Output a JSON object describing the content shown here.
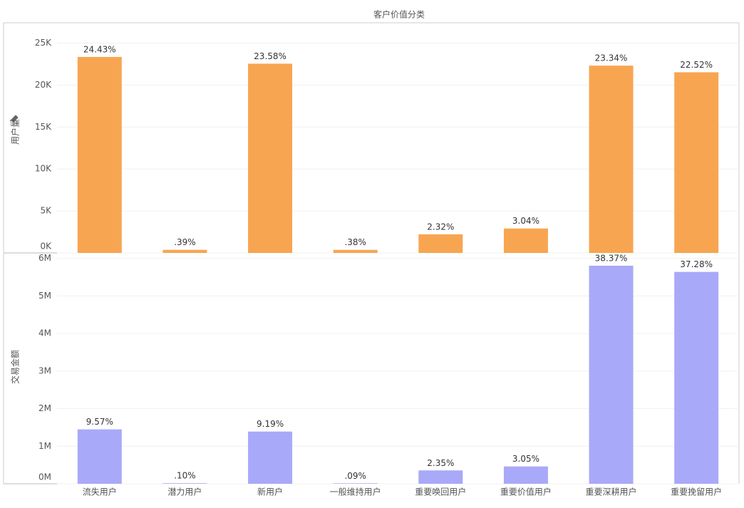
{
  "chart_data": [
    {
      "type": "bar",
      "title": "客户价值分类",
      "y_label": "用户量",
      "color": "#f8a552",
      "values": [
        23360,
        370,
        22550,
        365,
        2220,
        2910,
        22320,
        21530
      ],
      "labels": [
        "24.43%",
        ".39%",
        "23.58%",
        ".38%",
        "2.32%",
        "3.04%",
        "23.34%",
        "22.52%"
      ],
      "ylim": [
        0,
        27000
      ],
      "yticks": [
        {
          "value": 0,
          "label": "0K"
        },
        {
          "value": 5000,
          "label": "5K"
        },
        {
          "value": 10000,
          "label": "10K"
        },
        {
          "value": 15000,
          "label": "15K"
        },
        {
          "value": 20000,
          "label": "20K"
        },
        {
          "value": 25000,
          "label": "25K"
        }
      ],
      "grid": true
    },
    {
      "type": "bar",
      "y_label": "交易金额",
      "color": "#a9a9f9",
      "categories": [
        "流失用户",
        "潜力用户",
        "新用户",
        "一般维持用户",
        "重要唤回用户",
        "重要价值用户",
        "重要深耕用户",
        "重要挽留用户"
      ],
      "values": [
        1448000,
        15130,
        1390000,
        13620,
        355600,
        461500,
        5805000,
        5640000
      ],
      "labels": [
        "9.57%",
        ".10%",
        "9.19%",
        ".09%",
        "2.35%",
        "3.05%",
        "38.37%",
        "37.28%"
      ],
      "ylim": [
        0,
        6050000
      ],
      "yticks": [
        {
          "value": 0,
          "label": "0M"
        },
        {
          "value": 1000000,
          "label": "1M"
        },
        {
          "value": 2000000,
          "label": "2M"
        },
        {
          "value": 3000000,
          "label": "3M"
        },
        {
          "value": 4000000,
          "label": "4M"
        },
        {
          "value": 5000000,
          "label": "5M"
        },
        {
          "value": 6000000,
          "label": "6M"
        }
      ],
      "grid": true
    }
  ]
}
